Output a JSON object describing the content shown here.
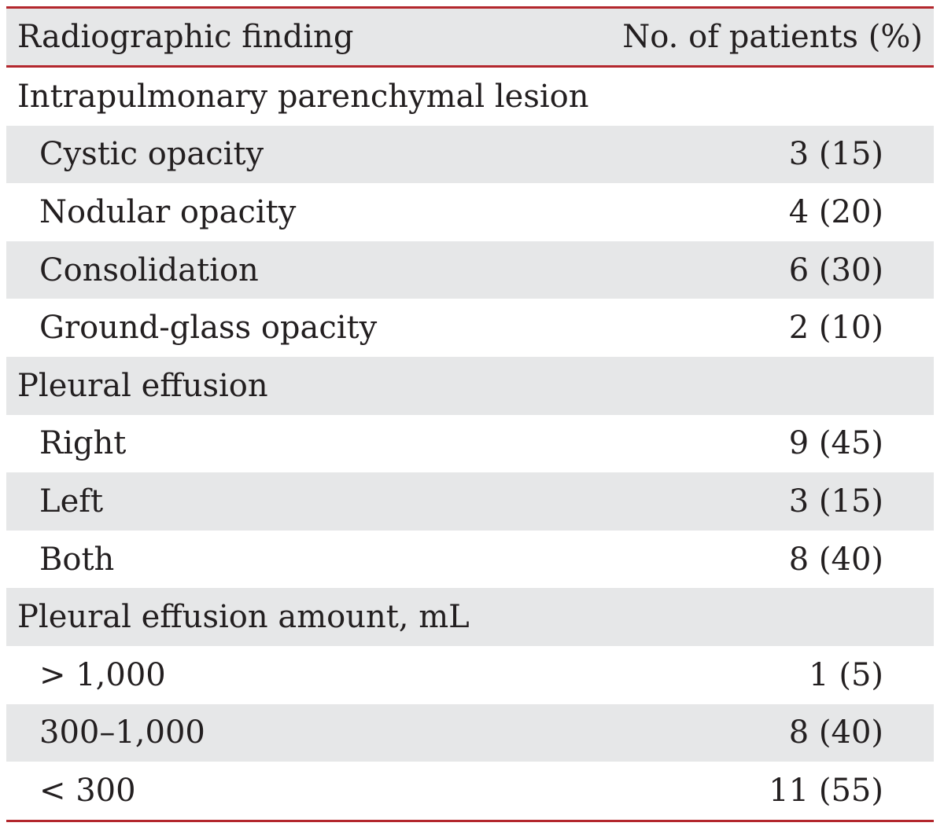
{
  "table": {
    "header": {
      "col1": "Radiographic finding",
      "col2": "No. of patients (%)"
    },
    "rows": [
      {
        "label": "Intrapulmonary parenchymal lesion",
        "value": "",
        "indent": false
      },
      {
        "label": "Cystic opacity",
        "value": "3 (15)",
        "indent": true
      },
      {
        "label": "Nodular opacity",
        "value": "4 (20)",
        "indent": true
      },
      {
        "label": "Consolidation",
        "value": "6 (30)",
        "indent": true
      },
      {
        "label": "Ground-glass opacity",
        "value": "2 (10)",
        "indent": true
      },
      {
        "label": "Pleural effusion",
        "value": "",
        "indent": false
      },
      {
        "label": "Right",
        "value": "9 (45)",
        "indent": true
      },
      {
        "label": "Left",
        "value": "3 (15)",
        "indent": true
      },
      {
        "label": "Both",
        "value": "8 (40)",
        "indent": true
      },
      {
        "label": "Pleural effusion amount, mL",
        "value": "",
        "indent": false
      },
      {
        "label": "> 1,000",
        "value": "1 (5)",
        "indent": true
      },
      {
        "label": "300–1,000",
        "value": "8 (40)",
        "indent": true
      },
      {
        "label": "< 300",
        "value": "11 (55)",
        "indent": true
      }
    ]
  },
  "colors": {
    "rule": "#b3272d",
    "stripe": "#e6e7e8",
    "text": "#231f20"
  }
}
